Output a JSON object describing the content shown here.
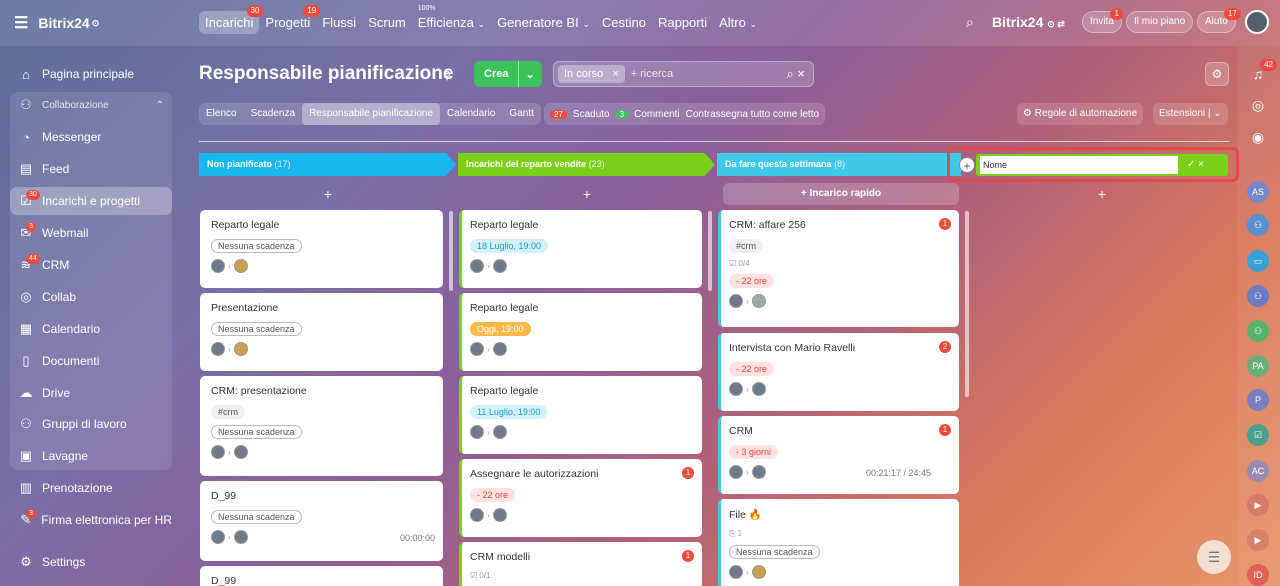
{
  "topbar": {
    "brand": "Bitrix24",
    "nav": [
      {
        "label": "Incarichi",
        "badge": "30",
        "active": true
      },
      {
        "label": "Progetti",
        "badge": "19"
      },
      {
        "label": "Flussi"
      },
      {
        "label": "Scrum"
      },
      {
        "label": "Efficienza",
        "sup": "100%",
        "caret": true
      },
      {
        "label": "Generatore BI",
        "caret": true
      },
      {
        "label": "Cestino"
      },
      {
        "label": "Rapporti"
      },
      {
        "label": "Altro",
        "caret": true
      }
    ],
    "brand2": "Bitrix24",
    "invite": "Invita",
    "invite_badge": "1",
    "plan": "Il mio piano",
    "help": "Aiuto",
    "help_badge": "17"
  },
  "sidebar": {
    "items": [
      {
        "label": "Pagina principale",
        "icon": "home-icon"
      },
      {
        "label": "Collaborazione",
        "icon": "group-icon",
        "section": true
      },
      {
        "label": "Messenger",
        "icon": "chat-icon"
      },
      {
        "label": "Feed",
        "icon": "feed-icon"
      },
      {
        "label": "Incarichi e progetti",
        "icon": "tasks-icon",
        "badge": "30",
        "active": true
      },
      {
        "label": "Webmail",
        "icon": "mail-icon",
        "badge": "3"
      },
      {
        "label": "CRM",
        "icon": "crm-icon",
        "badge": "44"
      },
      {
        "label": "Collab",
        "icon": "collab-icon"
      },
      {
        "label": "Calendario",
        "icon": "calendar-icon"
      },
      {
        "label": "Documenti",
        "icon": "document-icon"
      },
      {
        "label": "Drive",
        "icon": "drive-icon"
      },
      {
        "label": "Gruppi di lavoro",
        "icon": "workgroup-icon"
      },
      {
        "label": "Lavagne",
        "icon": "board-icon"
      },
      {
        "label": "Prenotazione",
        "icon": "booking-icon"
      },
      {
        "label": "Firma elettronica per HR",
        "icon": "signature-icon",
        "badge": "3"
      },
      {
        "label": "Settings",
        "icon": "settings-icon"
      }
    ]
  },
  "right": {
    "bell_badge": "42",
    "avatars": [
      "AS",
      "",
      "",
      "",
      "",
      "PA",
      "P",
      "",
      "AC",
      "",
      "",
      "ID"
    ]
  },
  "header": {
    "title": "Responsabile pianificazione",
    "crea": "Crea",
    "filter_chip": "In corso",
    "search_placeholder": "+ ricerca"
  },
  "tabs": [
    "Elenco",
    "Scadenza",
    "Responsabile pianificazione",
    "Calendario",
    "Gantt"
  ],
  "stats": {
    "overdue_count": "27",
    "overdue_label": "Scaduto",
    "comments_count": "3",
    "comments_label": "Commenti",
    "mark_read": "Contrassegna tutto come letto"
  },
  "automation": "Regole di automazione",
  "extensions": "Estensioni",
  "columns": [
    {
      "title": "Non pianificato",
      "count": "(17)",
      "color": "#19b7f0"
    },
    {
      "title": "Incarichi del reparto vendite",
      "count": "(23)",
      "color": "#7bd11a"
    },
    {
      "title": "Da fare questa settimana",
      "count": "(8)",
      "color": "#3ec9e8"
    }
  ],
  "plus": "+",
  "quick_task": "+ Incarico rapido",
  "new_column": {
    "value": "Nome"
  },
  "cards": [
    {
      "title": "Reparto legale",
      "tag": "Nessuna scadenza"
    },
    {
      "title": "Presentazione",
      "tag": "Nessuna scadenza"
    },
    {
      "title": "CRM: presentazione",
      "tag0": "#crm",
      "tag": "Nessuna scadenza"
    },
    {
      "title": "D_99",
      "tag": "Nessuna scadenza",
      "time": "00:00:00"
    },
    {
      "title": "D_99"
    },
    {
      "title": "Reparto legale",
      "tag": "18 Luglio, 19:00"
    },
    {
      "title": "Reparto legale",
      "tag": "Oggi, 19:00"
    },
    {
      "title": "Reparto legale",
      "tag": "11 Luglio, 19:00"
    },
    {
      "title": "Assegnare le autorizzazioni",
      "tag": "- 22 ore",
      "num": "1"
    },
    {
      "title": "CRM modelli",
      "num": "1",
      "meta": "0/1"
    },
    {
      "title": "CRM: affare 256",
      "tag0": "#crm",
      "meta": "0/4",
      "tag": "- 22 ore",
      "num": "1"
    },
    {
      "title": "Intervista con Mario Ravelli",
      "tag": "- 22 ore",
      "num": "2"
    },
    {
      "title": "CRM",
      "tag": "- 3 giorni",
      "num": "1",
      "time": "00:21:17 / 24:45"
    },
    {
      "title": "File",
      "meta": "1",
      "tag": "Nessuna scadenza"
    }
  ]
}
